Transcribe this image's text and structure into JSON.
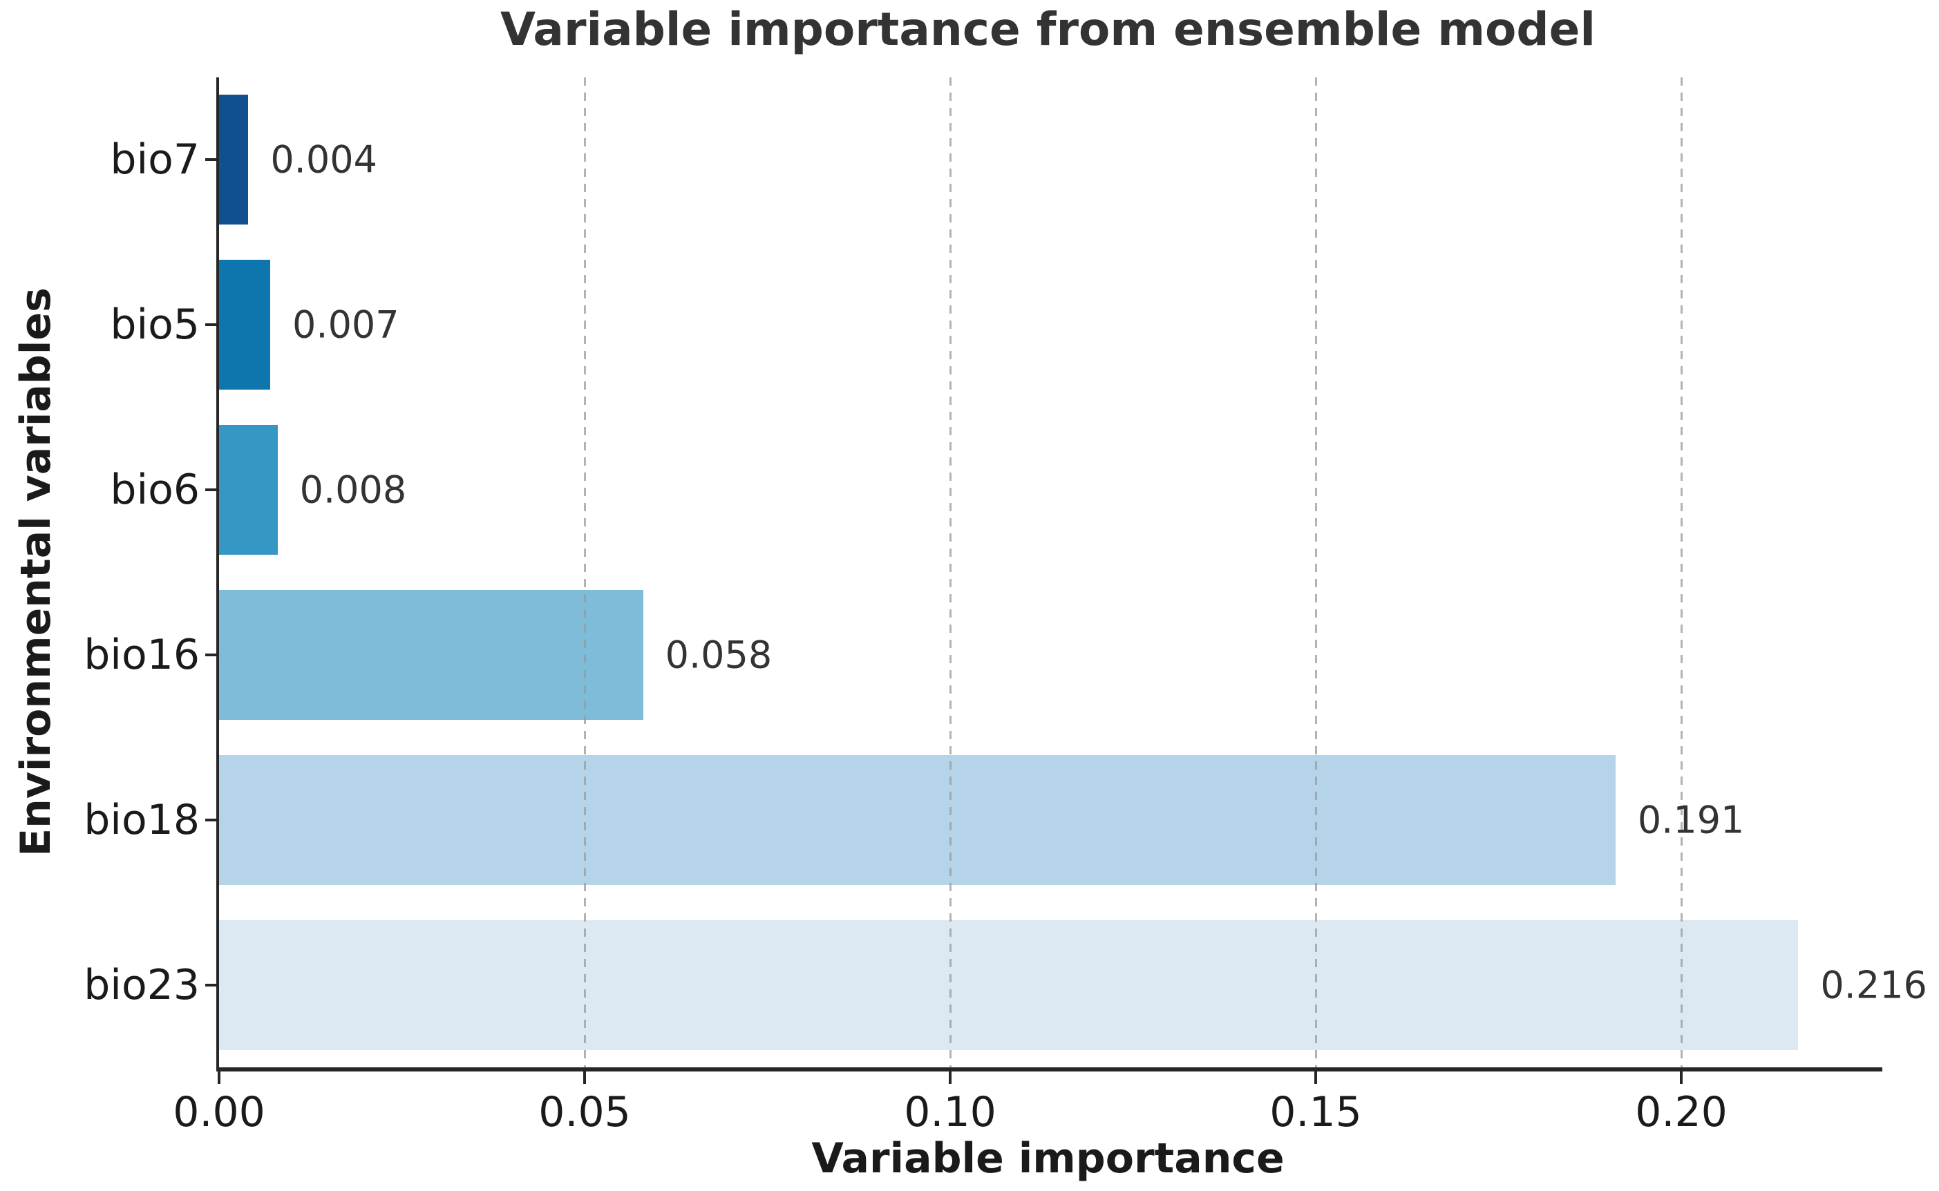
{
  "chart_data": {
    "type": "bar",
    "orientation": "horizontal",
    "title": "Variable importance from ensemble model",
    "xlabel": "Variable importance",
    "ylabel": "Environmental variables",
    "categories": [
      "bio7",
      "bio5",
      "bio6",
      "bio16",
      "bio18",
      "bio23"
    ],
    "values": [
      0.004,
      0.007,
      0.008,
      0.058,
      0.191,
      0.216
    ],
    "value_labels": [
      "0.004",
      "0.007",
      "0.008",
      "0.058",
      "0.191",
      "0.216"
    ],
    "bar_colors": [
      "#11508f",
      "#0f76ad",
      "#3696c4",
      "#7ebcda",
      "#b5d4e9",
      "#dce9f3"
    ],
    "x_ticks": [
      {
        "value": 0.0,
        "label": "0.00"
      },
      {
        "value": 0.05,
        "label": "0.05"
      },
      {
        "value": 0.1,
        "label": "0.10"
      },
      {
        "value": 0.15,
        "label": "0.15"
      },
      {
        "value": 0.2,
        "label": "0.20"
      }
    ],
    "xlim": [
      0,
      0.2275
    ],
    "grid": "vertical-dashed-over-bars",
    "legend": "none"
  },
  "colors": {
    "background": "#ffffff",
    "spine": "#262626",
    "gridline": "#9a9a9a",
    "title_text": "#333333",
    "label_text": "#1a1a1a",
    "value_text": "#333333"
  }
}
